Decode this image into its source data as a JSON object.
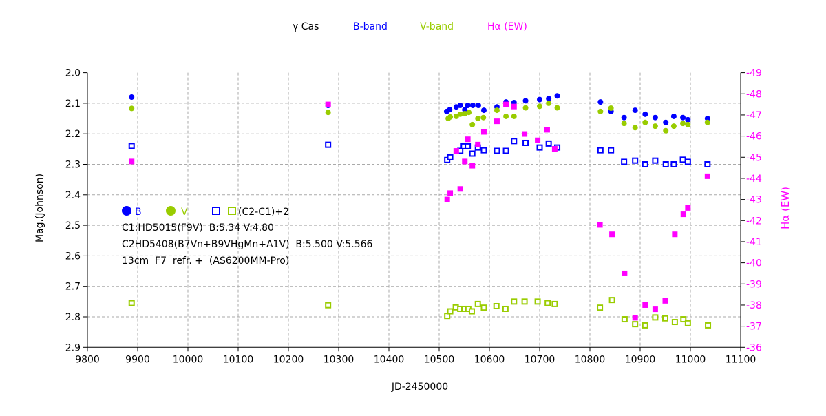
{
  "chart_data": {
    "type": "scatter",
    "title_items": [
      {
        "text": "γ Cas",
        "color": "#000000"
      },
      {
        "text": "B-band",
        "color": "#0000ff"
      },
      {
        "text": "V-band",
        "color": "#99cc00"
      },
      {
        "text": "Hα (EW)",
        "color": "#ff00ff"
      }
    ],
    "xlabel": "JD-2450000",
    "ylabel": "Mag.(Johnson)",
    "y2label": "Hα (EW)",
    "xlim": [
      9800,
      11100
    ],
    "ylim": [
      2.0,
      2.9
    ],
    "y2lim": [
      -49,
      -36
    ],
    "xticks": [
      9800,
      9900,
      10000,
      10100,
      10200,
      10300,
      10400,
      10500,
      10600,
      10700,
      10800,
      10900,
      11000,
      11100
    ],
    "yticks": [
      "2.0",
      "2.1",
      "2.2",
      "2.3",
      "2.4",
      "2.5",
      "2.6",
      "2.7",
      "2.8",
      "2.9"
    ],
    "y2ticks": [
      "-49",
      "-48",
      "-47",
      "-46",
      "-45",
      "-44",
      "-43",
      "-42",
      "-41",
      "-40",
      "-39",
      "-38",
      "-37",
      "-36"
    ],
    "grid": true,
    "legend": {
      "items": [
        {
          "label": "B",
          "marker": "filled-circle",
          "color": "#0000ff"
        },
        {
          "label": "V",
          "marker": "filled-circle",
          "color": "#99cc00"
        },
        {
          "label": "(C2-C1)+2",
          "marker": "open-square-pair",
          "colors": [
            "#0000ff",
            "#99cc00"
          ]
        }
      ],
      "notes": [
        "C1:HD5015(F9V)  B:5.34 V:4.80",
        "C2HD5408(B7Vn+B9VHgMn+A1V)  B:5.500 V:5.566",
        "13cm  F7  refr. +  (AS6200MM-Pro)"
      ],
      "placement": "middle-left"
    },
    "series": [
      {
        "name": "B",
        "axis": "left",
        "marker": "filled-circle",
        "color": "#0000ff",
        "x": [
          9888,
          10279,
          10515,
          10521,
          10534,
          10542,
          10551,
          10557,
          10567,
          10578,
          10589,
          10615,
          10633,
          10649,
          10672,
          10700,
          10718,
          10735,
          10821,
          10842,
          10868,
          10890,
          10910,
          10930,
          10951,
          10967,
          10985,
          10995,
          11034
        ],
        "y": [
          2.08,
          2.107,
          2.127,
          2.121,
          2.112,
          2.107,
          2.121,
          2.107,
          2.107,
          2.107,
          2.123,
          2.112,
          2.096,
          2.098,
          2.092,
          2.088,
          2.085,
          2.076,
          2.096,
          2.127,
          2.147,
          2.123,
          2.136,
          2.147,
          2.163,
          2.143,
          2.147,
          2.154,
          2.15
        ]
      },
      {
        "name": "V",
        "axis": "left",
        "marker": "filled-circle",
        "color": "#99cc00",
        "x": [
          9888,
          10279,
          10518,
          10522,
          10534,
          10542,
          10551,
          10559,
          10566,
          10577,
          10588,
          10615,
          10633,
          10649,
          10672,
          10700,
          10718,
          10735,
          10821,
          10842,
          10868,
          10890,
          10910,
          10930,
          10951,
          10967,
          10985,
          10995,
          11034
        ],
        "y": [
          2.117,
          2.13,
          2.15,
          2.145,
          2.143,
          2.136,
          2.134,
          2.13,
          2.17,
          2.15,
          2.147,
          2.123,
          2.143,
          2.143,
          2.115,
          2.11,
          2.1,
          2.115,
          2.127,
          2.116,
          2.166,
          2.18,
          2.163,
          2.175,
          2.19,
          2.175,
          2.166,
          2.17,
          2.163
        ]
      },
      {
        "name": "(C2-C1)+2 B",
        "axis": "left",
        "marker": "open-square",
        "color": "#0000ff",
        "x": [
          9888,
          10279,
          10516,
          10522,
          10542,
          10549,
          10557,
          10566,
          10577,
          10589,
          10615,
          10633,
          10649,
          10672,
          10700,
          10718,
          10735,
          10821,
          10842,
          10868,
          10890,
          10910,
          10930,
          10951,
          10967,
          10985,
          10995,
          11034
        ],
        "y": [
          2.24,
          2.236,
          2.286,
          2.277,
          2.256,
          2.241,
          2.241,
          2.265,
          2.245,
          2.254,
          2.256,
          2.256,
          2.224,
          2.23,
          2.245,
          2.232,
          2.245,
          2.254,
          2.254,
          2.292,
          2.288,
          2.3,
          2.288,
          2.3,
          2.3,
          2.285,
          2.292,
          2.3
        ]
      },
      {
        "name": "(C2-C1)+2 V",
        "axis": "left",
        "marker": "open-square",
        "color": "#99cc00",
        "x": [
          9888,
          10279,
          10516,
          10522,
          10533,
          10542,
          10550,
          10558,
          10565,
          10577,
          10589,
          10614,
          10632,
          10649,
          10670,
          10696,
          10716,
          10730,
          10820,
          10844,
          10869,
          10890,
          10910,
          10930,
          10950,
          10969,
          10986,
          10995,
          11035
        ],
        "y": [
          2.755,
          2.762,
          2.797,
          2.782,
          2.769,
          2.774,
          2.774,
          2.774,
          2.782,
          2.758,
          2.77,
          2.765,
          2.774,
          2.75,
          2.75,
          2.75,
          2.755,
          2.758,
          2.77,
          2.745,
          2.808,
          2.824,
          2.828,
          2.802,
          2.805,
          2.817,
          2.808,
          2.821,
          2.828
        ]
      },
      {
        "name": "Hα (EW)",
        "axis": "right",
        "marker": "filled-square",
        "color": "#ff00ff",
        "x": [
          9888,
          10279,
          10516,
          10522,
          10534,
          10542,
          10551,
          10557,
          10566,
          10577,
          10589,
          10615,
          10633,
          10649,
          10670,
          10696,
          10715,
          10730,
          10820,
          10844,
          10869,
          10890,
          10910,
          10930,
          10950,
          10969,
          10986,
          10995,
          11034
        ],
        "y": [
          -44.8,
          -47.5,
          -43.0,
          -43.3,
          -45.3,
          -43.5,
          -44.8,
          -45.85,
          -44.6,
          -45.6,
          -46.2,
          -46.7,
          -47.5,
          -47.4,
          -46.1,
          -45.8,
          -46.3,
          -45.4,
          -41.8,
          -41.35,
          -39.5,
          -37.4,
          -38.0,
          -37.8,
          -38.2,
          -41.35,
          -42.3,
          -42.6,
          -44.1
        ]
      }
    ]
  }
}
